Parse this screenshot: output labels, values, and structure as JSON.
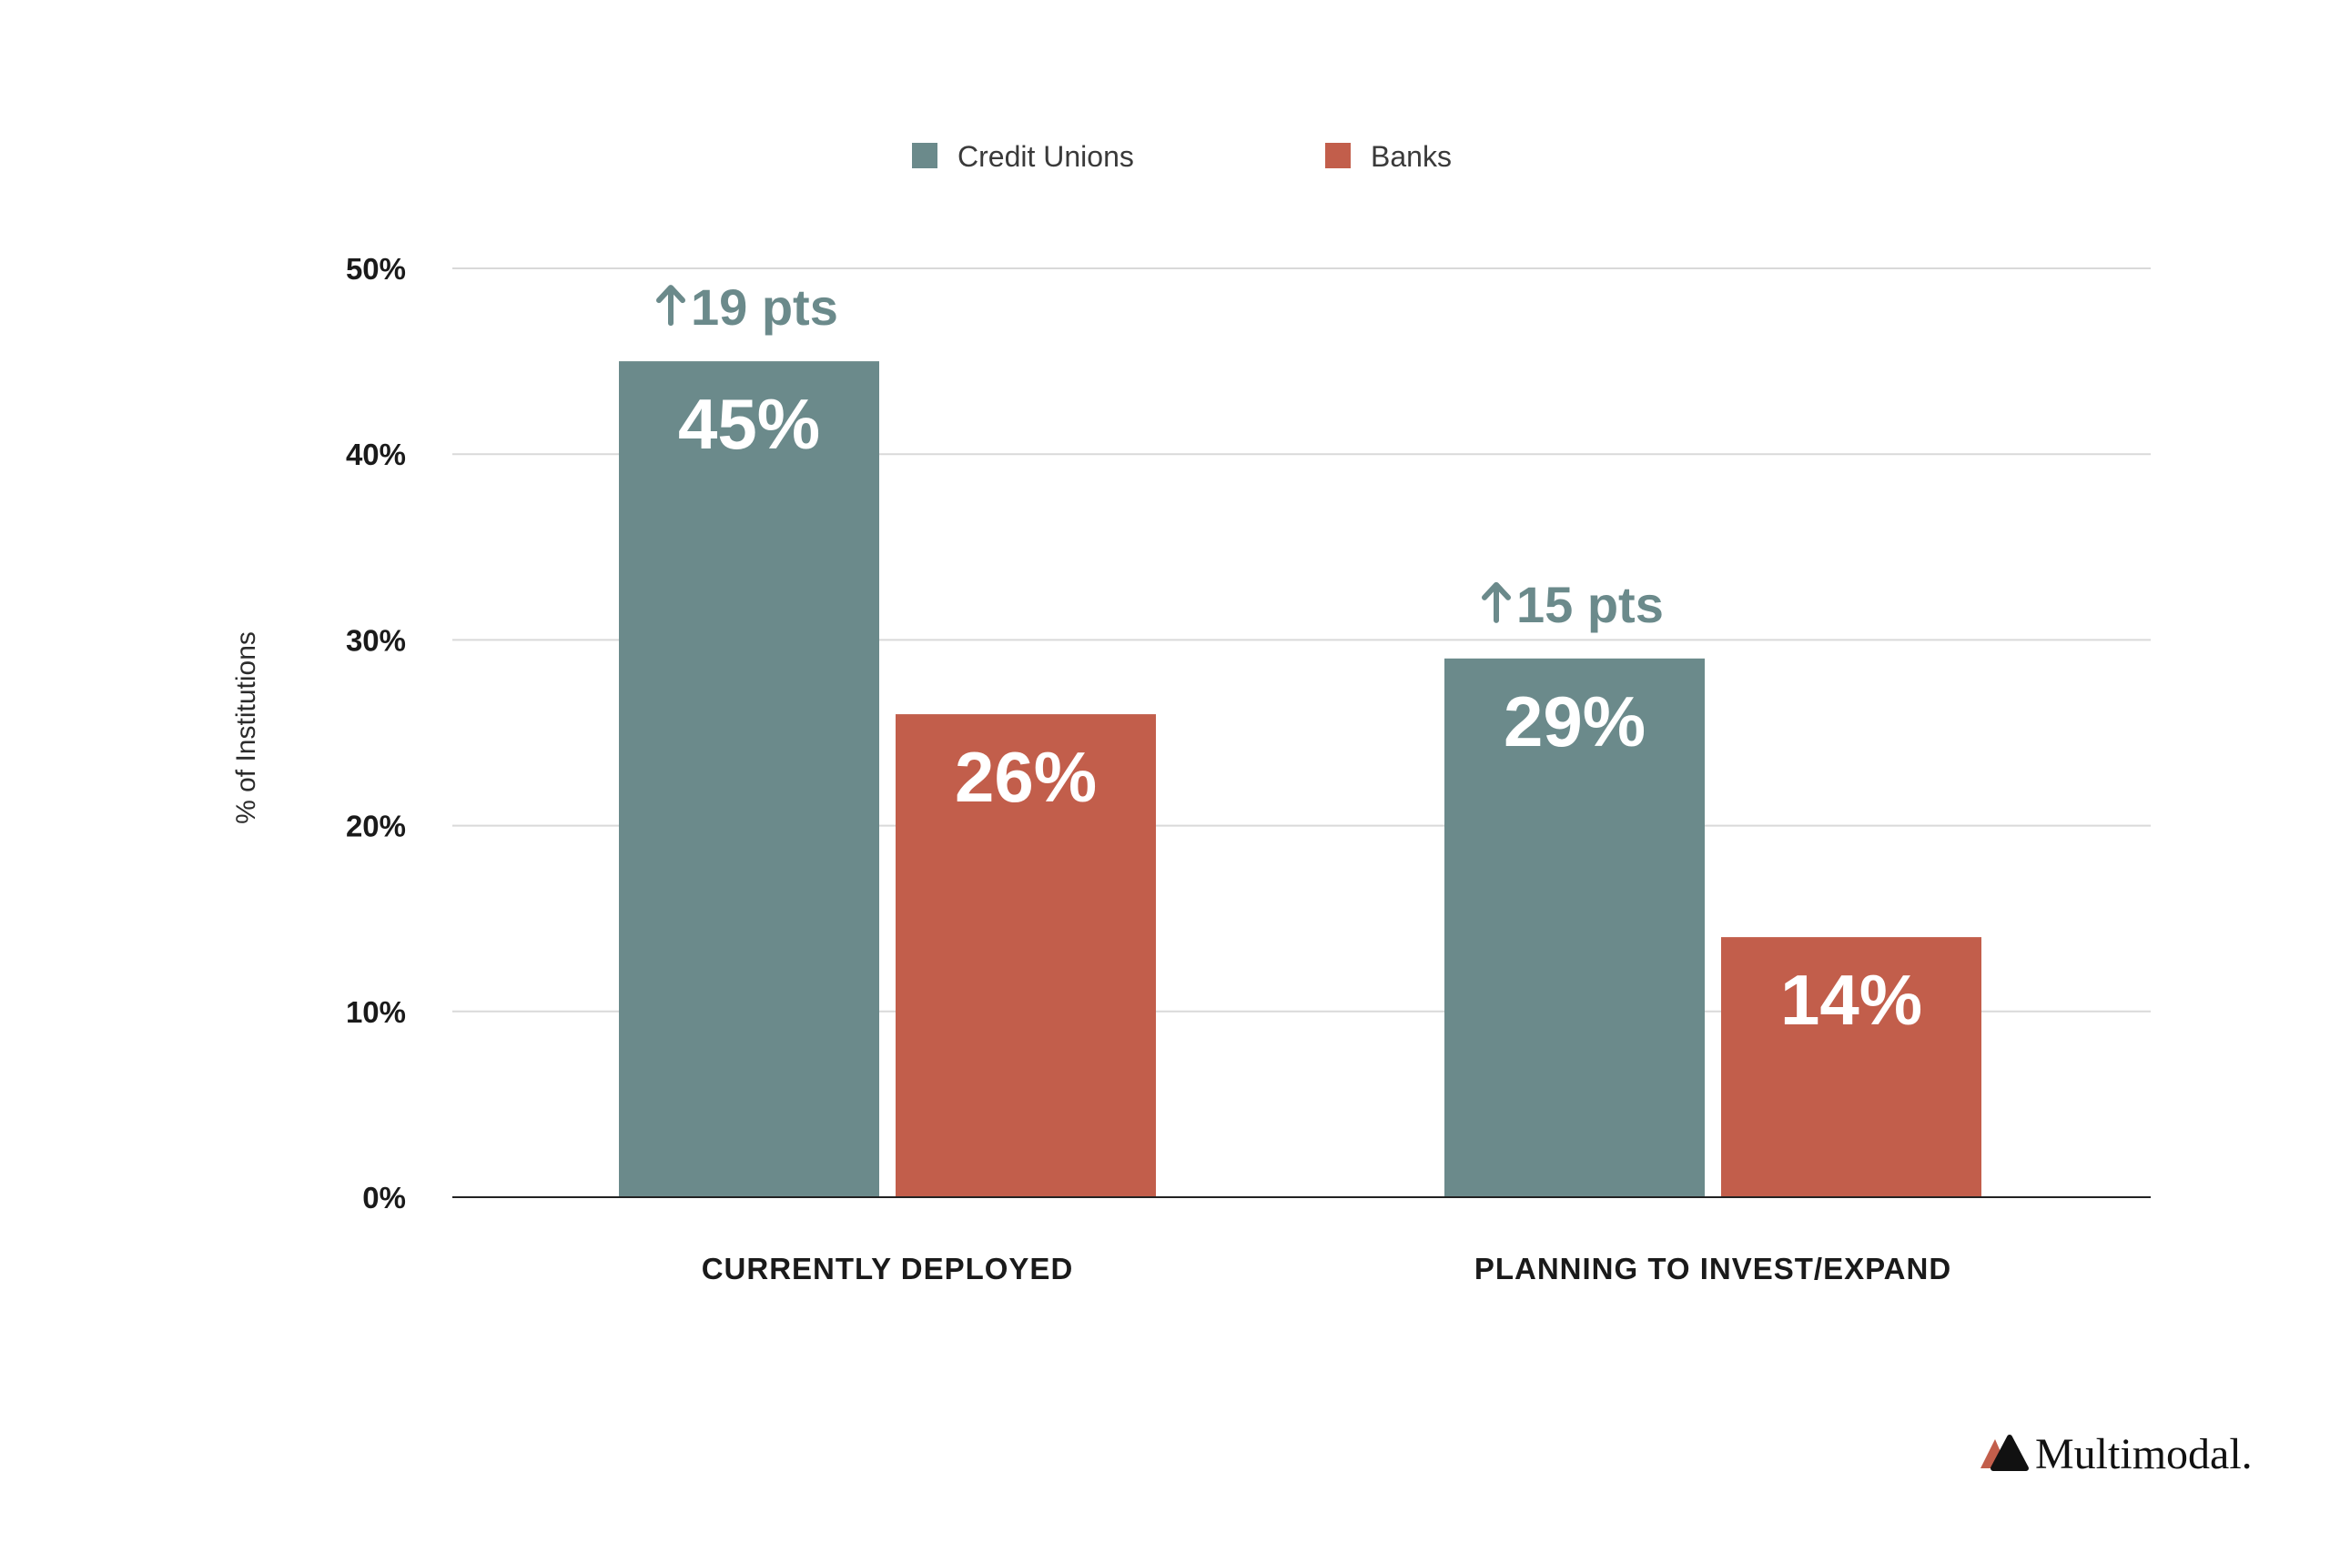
{
  "chart_data": {
    "type": "bar",
    "categories": [
      "CURRENTLY DEPLOYED",
      "PLANNING TO INVEST/EXPAND"
    ],
    "series": [
      {
        "name": "Credit Unions",
        "values": [
          45,
          29
        ],
        "color": "#6b8a8b",
        "data_labels": [
          "45%",
          "29%"
        ]
      },
      {
        "name": "Banks",
        "values": [
          26,
          14
        ],
        "color": "#c25e4b",
        "data_labels": [
          "26%",
          "14%"
        ]
      }
    ],
    "ylabel": "% of Institutions",
    "xlabel": "",
    "ylim": [
      0,
      50
    ],
    "yticks": [
      0,
      10,
      20,
      30,
      40,
      50
    ],
    "ytick_labels": [
      "0%",
      "10%",
      "20%",
      "30%",
      "40%",
      "50%"
    ],
    "grid": true,
    "legend_position": "top-center",
    "annotations": [
      {
        "category_index": 0,
        "text": "19 pts",
        "icon": "arrow-up-icon",
        "color": "#6b8a8b"
      },
      {
        "category_index": 1,
        "text": "15 pts",
        "icon": "arrow-up-icon",
        "color": "#6b8a8b"
      }
    ]
  },
  "brand": {
    "logo_text": "Multimodal.",
    "logo_icon": "multimodal-logo-icon",
    "colors": [
      "#c25e4b",
      "#111111"
    ]
  }
}
